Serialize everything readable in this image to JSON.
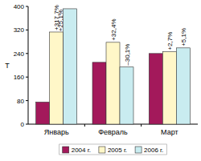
{
  "chart_data": {
    "type": "bar",
    "y_label": "Т",
    "categories": [
      "Январь",
      "Февраль",
      "Март"
    ],
    "series": [
      {
        "name": "2004 г.",
        "color": "#a3195b",
        "values": [
          75,
          210,
          240
        ]
      },
      {
        "name": "2005 г.",
        "color": "#fff7c8",
        "values": [
          313,
          278,
          246
        ],
        "annotations": [
          "+317,7%",
          "+32,4%",
          "+2,7%"
        ]
      },
      {
        "name": "2006 г.",
        "color": "#c9ecf0",
        "values": [
          392,
          194,
          259
        ],
        "annotations": [
          "+25,1%",
          "–30,1%",
          "+5,1%"
        ]
      }
    ],
    "ylim": [
      0,
      400
    ],
    "yticks": [
      0,
      80,
      160,
      240,
      320,
      400
    ],
    "grid": false,
    "legend": "bottom"
  }
}
